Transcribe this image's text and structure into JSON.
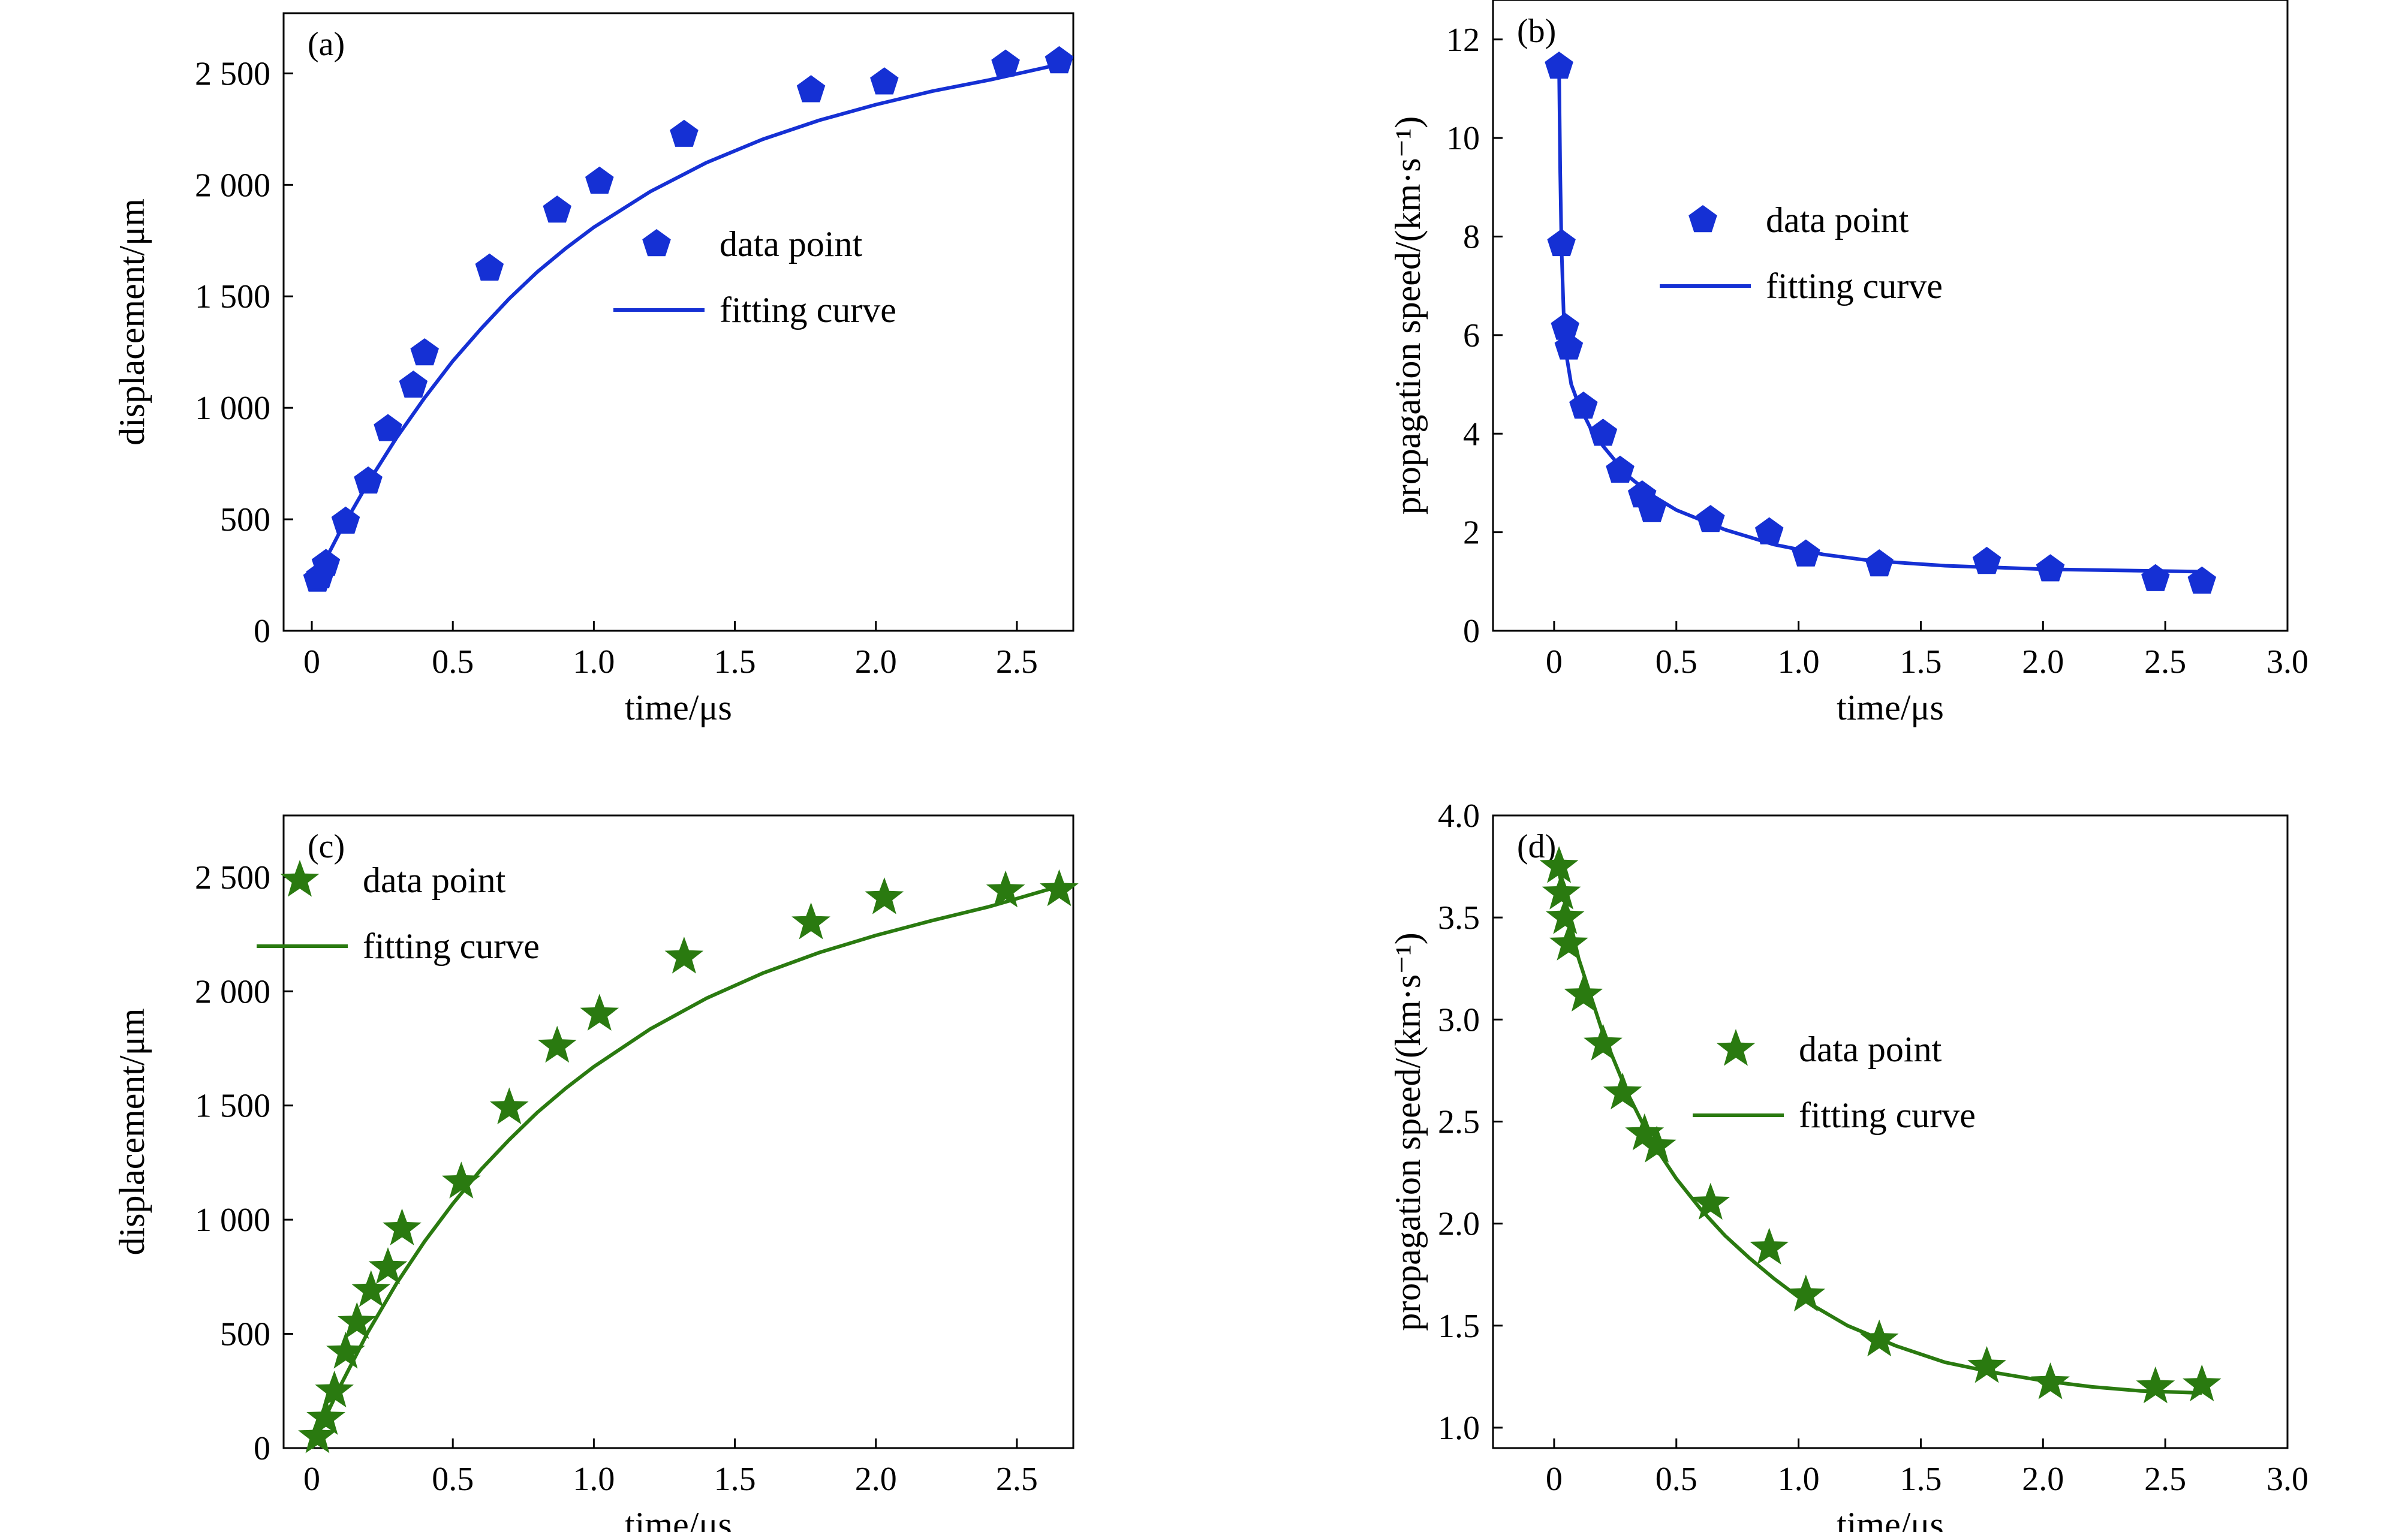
{
  "chart_data": [
    {
      "panel": "(a)",
      "type": "scatter",
      "xlabel": "time/μs",
      "ylabel": "displacement/μm",
      "xlim": [
        -0.1,
        2.7
      ],
      "ylim": [
        0,
        2770
      ],
      "xticks": [
        0,
        0.5,
        1.0,
        1.5,
        2.0,
        2.5
      ],
      "xtick_labels": [
        "0",
        "0.5",
        "1.0",
        "1.5",
        "2.0",
        "2.5"
      ],
      "yticks": [
        0,
        500,
        1000,
        1500,
        2000,
        2500
      ],
      "ytick_labels": [
        "0",
        "500",
        "1 000",
        "1 500",
        "2 000",
        "2 500"
      ],
      "marker": "pentagon",
      "color": "#1530d4",
      "legend": {
        "position": "center-right",
        "entries": [
          "data point",
          "fitting curve"
        ]
      },
      "series": [
        {
          "name": "data point",
          "kind": "points",
          "x": [
            0.02,
            0.03,
            0.05,
            0.12,
            0.2,
            0.27,
            0.36,
            0.4,
            0.63,
            0.87,
            1.02,
            1.32,
            1.77,
            2.03,
            2.46,
            2.65
          ],
          "y": [
            230,
            245,
            300,
            490,
            670,
            905,
            1100,
            1245,
            1625,
            1885,
            2015,
            2225,
            2425,
            2460,
            2540,
            2555
          ]
        },
        {
          "name": "fitting curve",
          "kind": "line",
          "x": [
            0.0,
            0.1,
            0.2,
            0.3,
            0.4,
            0.5,
            0.6,
            0.7,
            0.8,
            0.9,
            1.0,
            1.2,
            1.4,
            1.6,
            1.8,
            2.0,
            2.2,
            2.4,
            2.65
          ],
          "y": [
            200,
            445,
            665,
            865,
            1045,
            1210,
            1355,
            1490,
            1610,
            1715,
            1810,
            1970,
            2100,
            2205,
            2290,
            2360,
            2420,
            2470,
            2540
          ]
        }
      ]
    },
    {
      "panel": "(b)",
      "type": "scatter",
      "xlabel": "time/μs",
      "ylabel": "propagation speed/(km·s⁻¹)",
      "xlim": [
        -0.25,
        3.0
      ],
      "ylim": [
        0,
        12.8
      ],
      "xticks": [
        0,
        0.5,
        1.0,
        1.5,
        2.0,
        2.5,
        3.0
      ],
      "xtick_labels": [
        "0",
        "0.5",
        "1.0",
        "1.5",
        "2.0",
        "2.5",
        "3.0"
      ],
      "yticks": [
        0,
        2,
        4,
        6,
        8,
        10,
        12
      ],
      "ytick_labels": [
        "0",
        "2",
        "4",
        "6",
        "8",
        "10",
        "12"
      ],
      "marker": "pentagon",
      "color": "#1530d4",
      "legend": {
        "position": "upper-right",
        "entries": [
          "data point",
          "fitting curve"
        ]
      },
      "series": [
        {
          "name": "data point",
          "kind": "points",
          "x": [
            0.02,
            0.03,
            0.045,
            0.06,
            0.12,
            0.2,
            0.27,
            0.36,
            0.4,
            0.64,
            0.88,
            1.03,
            1.33,
            1.77,
            2.03,
            2.46,
            2.65
          ],
          "y": [
            11.45,
            7.85,
            6.15,
            5.75,
            4.55,
            4.0,
            3.25,
            2.75,
            2.45,
            2.25,
            2.0,
            1.55,
            1.35,
            1.4,
            1.25,
            1.05,
            1.0
          ]
        },
        {
          "name": "fitting curve",
          "kind": "line",
          "x": [
            0.02,
            0.025,
            0.03,
            0.04,
            0.05,
            0.07,
            0.1,
            0.15,
            0.2,
            0.3,
            0.4,
            0.5,
            0.7,
            0.9,
            1.1,
            1.3,
            1.6,
            2.0,
            2.65
          ],
          "y": [
            11.5,
            9.3,
            7.8,
            6.3,
            5.6,
            5.0,
            4.6,
            4.1,
            3.75,
            3.15,
            2.75,
            2.45,
            2.05,
            1.75,
            1.55,
            1.42,
            1.32,
            1.25,
            1.2
          ]
        }
      ]
    },
    {
      "panel": "(c)",
      "type": "scatter",
      "xlabel": "time/μs",
      "ylabel": "displacement/μm",
      "xlim": [
        -0.1,
        2.7
      ],
      "ylim": [
        0,
        2770
      ],
      "xticks": [
        0,
        0.5,
        1.0,
        1.5,
        2.0,
        2.5
      ],
      "xtick_labels": [
        "0",
        "0.5",
        "1.0",
        "1.5",
        "2.0",
        "2.5"
      ],
      "yticks": [
        0,
        500,
        1000,
        1500,
        2000,
        2500
      ],
      "ytick_labels": [
        "0",
        "500",
        "1 000",
        "1 500",
        "2 000",
        "2 500"
      ],
      "marker": "star",
      "color": "#2a7a10",
      "legend": {
        "position": "upper-left",
        "entries": [
          "data point",
          "fitting curve"
        ]
      },
      "series": [
        {
          "name": "data point",
          "kind": "points",
          "x": [
            0.02,
            0.05,
            0.08,
            0.12,
            0.16,
            0.21,
            0.27,
            0.32,
            0.53,
            0.7,
            0.87,
            1.02,
            1.32,
            1.77,
            2.03,
            2.46,
            2.65
          ],
          "y": [
            50,
            130,
            250,
            420,
            550,
            690,
            790,
            960,
            1165,
            1490,
            1760,
            1900,
            2150,
            2300,
            2410,
            2440,
            2445
          ]
        },
        {
          "name": "fitting curve",
          "kind": "line",
          "x": [
            0.0,
            0.05,
            0.1,
            0.2,
            0.3,
            0.4,
            0.5,
            0.6,
            0.7,
            0.8,
            0.9,
            1.0,
            1.2,
            1.4,
            1.6,
            1.8,
            2.0,
            2.2,
            2.4,
            2.65
          ],
          "y": [
            0,
            140,
            270,
            510,
            720,
            905,
            1070,
            1220,
            1350,
            1470,
            1575,
            1670,
            1835,
            1970,
            2080,
            2170,
            2245,
            2310,
            2370,
            2460
          ]
        }
      ]
    },
    {
      "panel": "(d)",
      "type": "scatter",
      "xlabel": "time/μs",
      "ylabel": "propagation speed/(km·s⁻¹)",
      "xlim": [
        -0.25,
        3.0
      ],
      "ylim": [
        0.9,
        4.0
      ],
      "xticks": [
        0,
        0.5,
        1.0,
        1.5,
        2.0,
        2.5,
        3.0
      ],
      "xtick_labels": [
        "0",
        "0.5",
        "1.0",
        "1.5",
        "2.0",
        "2.5",
        "3.0"
      ],
      "yticks": [
        1.0,
        1.5,
        2.0,
        2.5,
        3.0,
        3.5,
        4.0
      ],
      "ytick_labels": [
        "1.0",
        "1.5",
        "2.0",
        "2.5",
        "3.0",
        "3.5",
        "4.0"
      ],
      "marker": "star",
      "color": "#2a7a10",
      "legend": {
        "position": "center-right",
        "entries": [
          "data point",
          "fitting curve"
        ]
      },
      "series": [
        {
          "name": "data point",
          "kind": "points",
          "x": [
            0.02,
            0.03,
            0.045,
            0.06,
            0.12,
            0.2,
            0.28,
            0.37,
            0.42,
            0.64,
            0.88,
            1.03,
            1.33,
            1.77,
            2.03,
            2.46,
            2.65
          ],
          "y": [
            3.75,
            3.62,
            3.5,
            3.37,
            3.12,
            2.88,
            2.64,
            2.44,
            2.38,
            2.1,
            1.88,
            1.65,
            1.43,
            1.3,
            1.22,
            1.2,
            1.21
          ]
        },
        {
          "name": "fitting curve",
          "kind": "line",
          "x": [
            0.02,
            0.1,
            0.2,
            0.3,
            0.4,
            0.5,
            0.6,
            0.7,
            0.8,
            0.9,
            1.0,
            1.2,
            1.4,
            1.6,
            1.8,
            2.0,
            2.2,
            2.4,
            2.65
          ],
          "y": [
            3.72,
            3.3,
            2.93,
            2.64,
            2.4,
            2.22,
            2.07,
            1.94,
            1.83,
            1.73,
            1.64,
            1.5,
            1.4,
            1.32,
            1.27,
            1.23,
            1.2,
            1.18,
            1.17
          ]
        }
      ]
    }
  ]
}
